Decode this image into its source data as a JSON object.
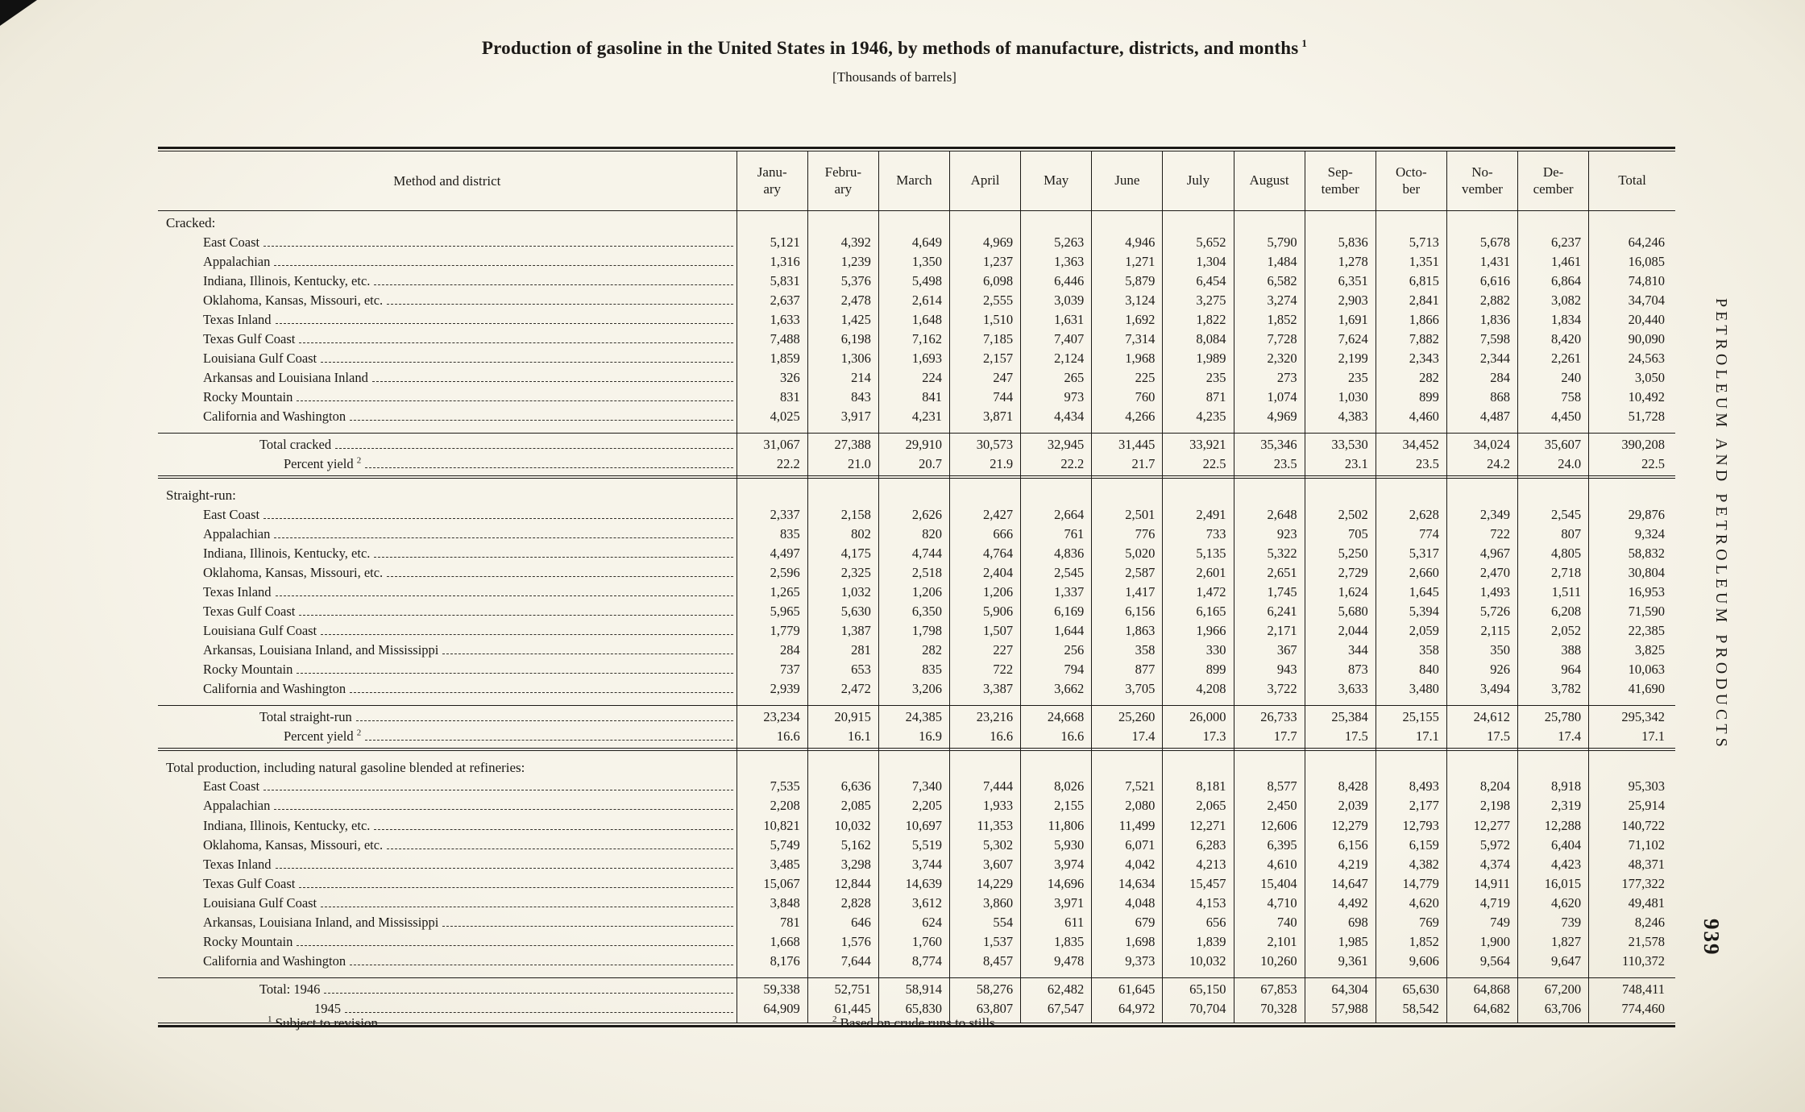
{
  "page": {
    "title": "Production of gasoline in the United States in 1946, by methods of manufacture, districts, and months",
    "title_footnote_marker": "1",
    "units_note": "[Thousands of barrels]",
    "margin_heading": "PETROLEUM AND PETROLEUM PRODUCTS",
    "page_number": "939",
    "footnotes": [
      {
        "marker": "1",
        "text": "Subject to revision."
      },
      {
        "marker": "2",
        "text": "Based on crude runs to stills."
      }
    ]
  },
  "table": {
    "corner_header": "Method and district",
    "columns": [
      "Janu-\nary",
      "Febru-\nary",
      "March",
      "April",
      "May",
      "June",
      "July",
      "August",
      "Sep-\ntember",
      "Octo-\nber",
      "No-\nvember",
      "De-\ncember",
      "Total"
    ],
    "sections": [
      {
        "heading": "Cracked:",
        "rows": [
          {
            "label": "East Coast",
            "values": [
              "5,121",
              "4,392",
              "4,649",
              "4,969",
              "5,263",
              "4,946",
              "5,652",
              "5,790",
              "5,836",
              "5,713",
              "5,678",
              "6,237",
              "64,246"
            ]
          },
          {
            "label": "Appalachian",
            "values": [
              "1,316",
              "1,239",
              "1,350",
              "1,237",
              "1,363",
              "1,271",
              "1,304",
              "1,484",
              "1,278",
              "1,351",
              "1,431",
              "1,461",
              "16,085"
            ]
          },
          {
            "label": "Indiana, Illinois, Kentucky, etc.",
            "values": [
              "5,831",
              "5,376",
              "5,498",
              "6,098",
              "6,446",
              "5,879",
              "6,454",
              "6,582",
              "6,351",
              "6,815",
              "6,616",
              "6,864",
              "74,810"
            ]
          },
          {
            "label": "Oklahoma, Kansas, Missouri, etc.",
            "values": [
              "2,637",
              "2,478",
              "2,614",
              "2,555",
              "3,039",
              "3,124",
              "3,275",
              "3,274",
              "2,903",
              "2,841",
              "2,882",
              "3,082",
              "34,704"
            ]
          },
          {
            "label": "Texas Inland",
            "values": [
              "1,633",
              "1,425",
              "1,648",
              "1,510",
              "1,631",
              "1,692",
              "1,822",
              "1,852",
              "1,691",
              "1,866",
              "1,836",
              "1,834",
              "20,440"
            ]
          },
          {
            "label": "Texas Gulf Coast",
            "values": [
              "7,488",
              "6,198",
              "7,162",
              "7,185",
              "7,407",
              "7,314",
              "8,084",
              "7,728",
              "7,624",
              "7,882",
              "7,598",
              "8,420",
              "90,090"
            ]
          },
          {
            "label": "Louisiana Gulf Coast",
            "values": [
              "1,859",
              "1,306",
              "1,693",
              "2,157",
              "2,124",
              "1,968",
              "1,989",
              "2,320",
              "2,199",
              "2,343",
              "2,344",
              "2,261",
              "24,563"
            ]
          },
          {
            "label": "Arkansas and Louisiana Inland",
            "values": [
              "326",
              "214",
              "224",
              "247",
              "265",
              "225",
              "235",
              "273",
              "235",
              "282",
              "284",
              "240",
              "3,050"
            ]
          },
          {
            "label": "Rocky Mountain",
            "values": [
              "831",
              "843",
              "841",
              "744",
              "973",
              "760",
              "871",
              "1,074",
              "1,030",
              "899",
              "868",
              "758",
              "10,492"
            ]
          },
          {
            "label": "California and Washington",
            "values": [
              "4,025",
              "3,917",
              "4,231",
              "3,871",
              "4,434",
              "4,266",
              "4,235",
              "4,969",
              "4,383",
              "4,460",
              "4,487",
              "4,450",
              "51,728"
            ]
          }
        ],
        "totals": [
          {
            "label": "Total cracked",
            "indent": "total",
            "values": [
              "31,067",
              "27,388",
              "29,910",
              "30,573",
              "32,945",
              "31,445",
              "33,921",
              "35,346",
              "33,530",
              "34,452",
              "34,024",
              "35,607",
              "390,208"
            ]
          },
          {
            "label": "Percent yield",
            "sup": "2",
            "indent": "pct",
            "values": [
              "22.2",
              "21.0",
              "20.7",
              "21.9",
              "22.2",
              "21.7",
              "22.5",
              "23.5",
              "23.1",
              "23.5",
              "24.2",
              "24.0",
              "22.5"
            ]
          }
        ]
      },
      {
        "heading": "Straight-run:",
        "rows": [
          {
            "label": "East Coast",
            "values": [
              "2,337",
              "2,158",
              "2,626",
              "2,427",
              "2,664",
              "2,501",
              "2,491",
              "2,648",
              "2,502",
              "2,628",
              "2,349",
              "2,545",
              "29,876"
            ]
          },
          {
            "label": "Appalachian",
            "values": [
              "835",
              "802",
              "820",
              "666",
              "761",
              "776",
              "733",
              "923",
              "705",
              "774",
              "722",
              "807",
              "9,324"
            ]
          },
          {
            "label": "Indiana, Illinois, Kentucky, etc.",
            "values": [
              "4,497",
              "4,175",
              "4,744",
              "4,764",
              "4,836",
              "5,020",
              "5,135",
              "5,322",
              "5,250",
              "5,317",
              "4,967",
              "4,805",
              "58,832"
            ]
          },
          {
            "label": "Oklahoma, Kansas, Missouri, etc.",
            "values": [
              "2,596",
              "2,325",
              "2,518",
              "2,404",
              "2,545",
              "2,587",
              "2,601",
              "2,651",
              "2,729",
              "2,660",
              "2,470",
              "2,718",
              "30,804"
            ]
          },
          {
            "label": "Texas Inland",
            "values": [
              "1,265",
              "1,032",
              "1,206",
              "1,206",
              "1,337",
              "1,417",
              "1,472",
              "1,745",
              "1,624",
              "1,645",
              "1,493",
              "1,511",
              "16,953"
            ]
          },
          {
            "label": "Texas Gulf Coast",
            "values": [
              "5,965",
              "5,630",
              "6,350",
              "5,906",
              "6,169",
              "6,156",
              "6,165",
              "6,241",
              "5,680",
              "5,394",
              "5,726",
              "6,208",
              "71,590"
            ]
          },
          {
            "label": "Louisiana Gulf Coast",
            "values": [
              "1,779",
              "1,387",
              "1,798",
              "1,507",
              "1,644",
              "1,863",
              "1,966",
              "2,171",
              "2,044",
              "2,059",
              "2,115",
              "2,052",
              "22,385"
            ]
          },
          {
            "label": "Arkansas, Louisiana Inland, and Mississippi",
            "values": [
              "284",
              "281",
              "282",
              "227",
              "256",
              "358",
              "330",
              "367",
              "344",
              "358",
              "350",
              "388",
              "3,825"
            ]
          },
          {
            "label": "Rocky Mountain",
            "values": [
              "737",
              "653",
              "835",
              "722",
              "794",
              "877",
              "899",
              "943",
              "873",
              "840",
              "926",
              "964",
              "10,063"
            ]
          },
          {
            "label": "California and Washington",
            "values": [
              "2,939",
              "2,472",
              "3,206",
              "3,387",
              "3,662",
              "3,705",
              "4,208",
              "3,722",
              "3,633",
              "3,480",
              "3,494",
              "3,782",
              "41,690"
            ]
          }
        ],
        "totals": [
          {
            "label": "Total straight-run",
            "indent": "total",
            "values": [
              "23,234",
              "20,915",
              "24,385",
              "23,216",
              "24,668",
              "25,260",
              "26,000",
              "26,733",
              "25,384",
              "25,155",
              "24,612",
              "25,780",
              "295,342"
            ]
          },
          {
            "label": "Percent yield",
            "sup": "2",
            "indent": "pct",
            "values": [
              "16.6",
              "16.1",
              "16.9",
              "16.6",
              "16.6",
              "17.4",
              "17.3",
              "17.7",
              "17.5",
              "17.1",
              "17.5",
              "17.4",
              "17.1"
            ]
          }
        ]
      },
      {
        "heading": "Total production, including natural gasoline blended at refineries:",
        "rows": [
          {
            "label": "East Coast",
            "values": [
              "7,535",
              "6,636",
              "7,340",
              "7,444",
              "8,026",
              "7,521",
              "8,181",
              "8,577",
              "8,428",
              "8,493",
              "8,204",
              "8,918",
              "95,303"
            ]
          },
          {
            "label": "Appalachian",
            "values": [
              "2,208",
              "2,085",
              "2,205",
              "1,933",
              "2,155",
              "2,080",
              "2,065",
              "2,450",
              "2,039",
              "2,177",
              "2,198",
              "2,319",
              "25,914"
            ]
          },
          {
            "label": "Indiana, Illinois, Kentucky, etc.",
            "values": [
              "10,821",
              "10,032",
              "10,697",
              "11,353",
              "11,806",
              "11,499",
              "12,271",
              "12,606",
              "12,279",
              "12,793",
              "12,277",
              "12,288",
              "140,722"
            ]
          },
          {
            "label": "Oklahoma, Kansas, Missouri, etc.",
            "values": [
              "5,749",
              "5,162",
              "5,519",
              "5,302",
              "5,930",
              "6,071",
              "6,283",
              "6,395",
              "6,156",
              "6,159",
              "5,972",
              "6,404",
              "71,102"
            ]
          },
          {
            "label": "Texas Inland",
            "values": [
              "3,485",
              "3,298",
              "3,744",
              "3,607",
              "3,974",
              "4,042",
              "4,213",
              "4,610",
              "4,219",
              "4,382",
              "4,374",
              "4,423",
              "48,371"
            ]
          },
          {
            "label": "Texas Gulf Coast",
            "values": [
              "15,067",
              "12,844",
              "14,639",
              "14,229",
              "14,696",
              "14,634",
              "15,457",
              "15,404",
              "14,647",
              "14,779",
              "14,911",
              "16,015",
              "177,322"
            ]
          },
          {
            "label": "Louisiana Gulf Coast",
            "values": [
              "3,848",
              "2,828",
              "3,612",
              "3,860",
              "3,971",
              "4,048",
              "4,153",
              "4,710",
              "4,492",
              "4,620",
              "4,719",
              "4,620",
              "49,481"
            ]
          },
          {
            "label": "Arkansas, Louisiana Inland, and Mississippi",
            "values": [
              "781",
              "646",
              "624",
              "554",
              "611",
              "679",
              "656",
              "740",
              "698",
              "769",
              "749",
              "739",
              "8,246"
            ]
          },
          {
            "label": "Rocky Mountain",
            "values": [
              "1,668",
              "1,576",
              "1,760",
              "1,537",
              "1,835",
              "1,698",
              "1,839",
              "2,101",
              "1,985",
              "1,852",
              "1,900",
              "1,827",
              "21,578"
            ]
          },
          {
            "label": "California and Washington",
            "values": [
              "8,176",
              "7,644",
              "8,774",
              "8,457",
              "9,478",
              "9,373",
              "10,032",
              "10,260",
              "9,361",
              "9,606",
              "9,564",
              "9,647",
              "110,372"
            ]
          }
        ],
        "totals": [
          {
            "label": "Total: 1946",
            "indent": "total",
            "values": [
              "59,338",
              "52,751",
              "58,914",
              "58,276",
              "62,482",
              "61,645",
              "65,150",
              "67,853",
              "64,304",
              "65,630",
              "64,868",
              "67,200",
              "748,411"
            ]
          },
          {
            "label": "1945",
            "indent": "sub",
            "values": [
              "64,909",
              "61,445",
              "65,830",
              "63,807",
              "67,547",
              "64,972",
              "70,704",
              "70,328",
              "57,988",
              "58,542",
              "64,682",
              "63,706",
              "774,460"
            ]
          }
        ]
      }
    ]
  }
}
